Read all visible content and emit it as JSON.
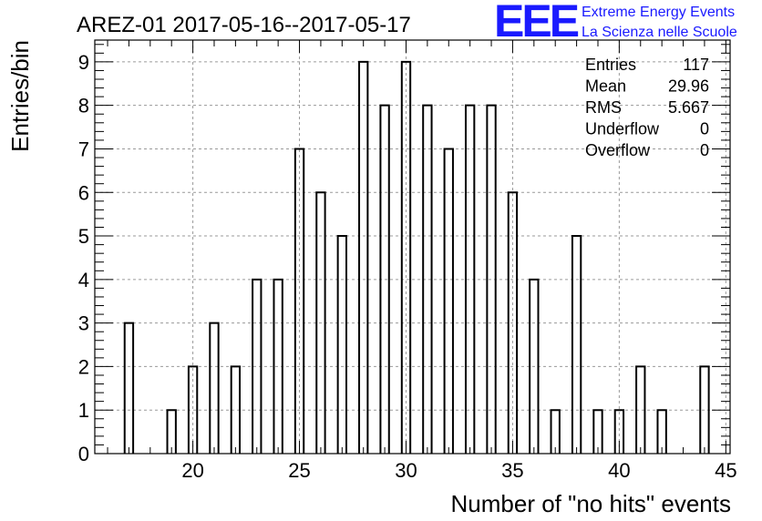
{
  "chart_data": {
    "type": "bar",
    "title": "AREZ-01 2017-05-16--2017-05-17",
    "xlabel": "Number of \"no hits\" events",
    "ylabel": "Entries/bin",
    "xlim": [
      15.4,
      45.2
    ],
    "ylim": [
      0,
      9.5
    ],
    "bin_width": 0.4,
    "x_ticks": [
      20,
      25,
      30,
      35,
      40,
      45
    ],
    "y_ticks": [
      0,
      1,
      2,
      3,
      4,
      5,
      6,
      7,
      8,
      9
    ],
    "grid": true,
    "bins": [
      {
        "x": 17,
        "count": 3
      },
      {
        "x": 19,
        "count": 1
      },
      {
        "x": 20,
        "count": 2
      },
      {
        "x": 21,
        "count": 3
      },
      {
        "x": 22,
        "count": 2
      },
      {
        "x": 23,
        "count": 4
      },
      {
        "x": 24,
        "count": 4
      },
      {
        "x": 25,
        "count": 7
      },
      {
        "x": 26,
        "count": 6
      },
      {
        "x": 27,
        "count": 5
      },
      {
        "x": 28,
        "count": 9
      },
      {
        "x": 29,
        "count": 8
      },
      {
        "x": 30,
        "count": 9
      },
      {
        "x": 31,
        "count": 8
      },
      {
        "x": 32,
        "count": 7
      },
      {
        "x": 33,
        "count": 8
      },
      {
        "x": 34,
        "count": 8
      },
      {
        "x": 35,
        "count": 6
      },
      {
        "x": 36,
        "count": 4
      },
      {
        "x": 37,
        "count": 1
      },
      {
        "x": 38,
        "count": 5
      },
      {
        "x": 39,
        "count": 1
      },
      {
        "x": 40,
        "count": 1
      },
      {
        "x": 41,
        "count": 2
      },
      {
        "x": 42,
        "count": 1
      },
      {
        "x": 44,
        "count": 2
      }
    ],
    "stats_box": [
      {
        "label": "Entries",
        "value": "117"
      },
      {
        "label": "Mean",
        "value": "29.96"
      },
      {
        "label": "RMS",
        "value": "5.667"
      },
      {
        "label": "Underflow",
        "value": "0"
      },
      {
        "label": "Overflow",
        "value": "0"
      }
    ]
  },
  "logo": {
    "letters": "EEE",
    "line1": "Extreme Energy Events",
    "line2": "La Scienza nelle Scuole",
    "color": "#1a1aff"
  }
}
